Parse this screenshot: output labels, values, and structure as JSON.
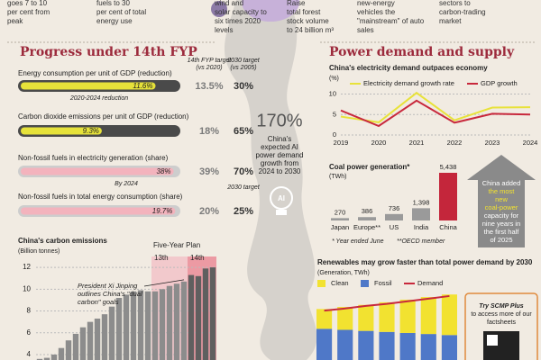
{
  "top_strip": {
    "columns": [
      [
        "goes 7 to 10",
        "per cent from",
        "peak"
      ],
      [
        "fuels to 30",
        "per cent of total",
        "energy use"
      ],
      [
        "wind and",
        "solar capacity to",
        "six times 2020",
        "levels"
      ],
      [
        "Raise",
        "total forest",
        "stock volume",
        "to 24 billion m³"
      ],
      [
        "new-energy",
        "vehicles the",
        "\"mainstream\" of auto",
        "sales"
      ],
      [
        "sectors to",
        "carbon-trading",
        "market"
      ]
    ]
  },
  "progress": {
    "title": "Progress under 14th FYP",
    "target_header": [
      "14th FYP target",
      "(vs 2020)"
    ],
    "target_2030_header": [
      "2030 target",
      "(vs 2005)"
    ],
    "rows": [
      {
        "label": "Energy consumption per unit of GDP (reduction)",
        "value": 11.6,
        "value_label": "11.6%",
        "target": 13.5,
        "target_label": "13.5%",
        "target_2030": 30,
        "target_2030_label": "30%",
        "note": "2020-2024 reduction",
        "color": "#e6e23a"
      },
      {
        "label": "Carbon dioxide emissions per unit of GDP (reduction)",
        "value": 9.3,
        "value_label": "9.3%",
        "target": 18,
        "target_label": "18%",
        "target_2030": 65,
        "target_2030_label": "65%",
        "color": "#e6e23a"
      },
      {
        "label": "Non-fossil fuels in electricity generation (share)",
        "value": 38,
        "value_label": "38%",
        "target": 39,
        "target_label": "39%",
        "target_2030": 70,
        "target_2030_label": "70%",
        "note": "By 2024",
        "note_2030": "2030 target",
        "color": "#f3b3bd"
      },
      {
        "label": "Non-fossil fuels in total energy consumption (share)",
        "value": 19.7,
        "value_label": "19.7%",
        "target": 20,
        "target_label": "20%",
        "target_2030": 25,
        "target_2030_label": "25%",
        "color": "#f3b3bd"
      }
    ]
  },
  "center": {
    "value": 170,
    "value_label": "170%",
    "lines": [
      "China's",
      "expected AI",
      "power demand",
      "growth from",
      "2024 to 2030"
    ],
    "icon": "AI"
  },
  "section_right": "Power demand and supply",
  "chart_data": [
    {
      "type": "bar",
      "title": "China's carbon emissions",
      "y_label": "(Billion tonnes)",
      "color": "#8c8c8c",
      "categories": [
        null,
        null,
        null,
        null,
        null,
        null,
        null,
        null,
        null,
        null,
        null,
        null,
        null,
        null,
        null,
        null,
        null,
        null,
        null,
        null,
        null,
        null,
        null,
        null,
        null
      ],
      "values": [
        3.6,
        3.7,
        4.0,
        4.6,
        5.3,
        5.9,
        6.5,
        7.0,
        7.3,
        7.7,
        8.4,
        9.2,
        9.5,
        9.8,
        9.9,
        9.8,
        9.8,
        10.0,
        10.3,
        10.5,
        10.7,
        11.3,
        11.2,
        11.9,
        12.0
      ],
      "ylim": [
        3.5,
        13
      ],
      "yticks": [
        4,
        6,
        8,
        10,
        12
      ],
      "grid": true,
      "plan_title": "Five-Year Plan",
      "plans": [
        "13th",
        "14th"
      ],
      "annotation": [
        "President Xi Jinping",
        "outlines China's \"dual",
        "carbon\" goals"
      ]
    },
    {
      "type": "line",
      "title": "China's electricity demand outpaces economy",
      "y_label": "(%)",
      "categories": [
        "2019",
        "2020",
        "2021",
        "2022",
        "2023",
        "2024"
      ],
      "series": [
        {
          "name": "Electricity demand growth rate",
          "color": "#e8e23a",
          "values": [
            4.5,
            3.1,
            10.3,
            3.6,
            6.7,
            6.8
          ]
        },
        {
          "name": "GDP growth",
          "color": "#c8283c",
          "values": [
            6.0,
            2.2,
            8.4,
            3.0,
            5.2,
            5.0
          ]
        }
      ],
      "ylim": [
        0,
        11
      ],
      "yticks": [
        0,
        5,
        10
      ],
      "grid": true
    },
    {
      "type": "bar",
      "title": "Coal power generation*",
      "y_label": "(TWh)",
      "categories": [
        "Japan",
        "Europe**",
        "US",
        "India",
        "China"
      ],
      "values": [
        270,
        386,
        736,
        1398,
        5438
      ],
      "value_labels": [
        "270",
        "386",
        "736",
        "1,398",
        "5,438"
      ],
      "colors": [
        "#9a9a9a",
        "#9a9a9a",
        "#9a9a9a",
        "#9a9a9a",
        "#c4263b"
      ],
      "ylim": [
        0,
        5438
      ],
      "notes": [
        "* Year ended June",
        "**OECD member"
      ],
      "callout": [
        "China added",
        "the most",
        "new",
        "coal-power",
        "capacity for",
        "nine years in",
        "the first half",
        "of 2025"
      ]
    },
    {
      "type": "stacked-bar",
      "title": "Renewables may grow faster than total power demand by 2030",
      "y_label": "(Generation, TWh)",
      "categories": [
        null,
        null,
        null,
        null,
        null,
        null,
        null
      ],
      "series": [
        {
          "name": "Clean",
          "color": "#f2e230",
          "values": [
            3800,
            4400,
            5000,
            5700,
            6400,
            7100,
            7800
          ]
        },
        {
          "name": "Fossil",
          "color": "#4f78c8",
          "values": [
            6000,
            5800,
            5600,
            5400,
            5200,
            5000,
            4800
          ]
        },
        {
          "name": "Demand",
          "color": "#c8283c",
          "type": "line",
          "values": [
            9500,
            9900,
            10400,
            10800,
            11300,
            11800,
            12300
          ]
        }
      ],
      "ylim": [
        0,
        13500
      ],
      "promo": [
        "Try SCMP Plus",
        "to access more of our",
        "factsheets"
      ]
    }
  ]
}
